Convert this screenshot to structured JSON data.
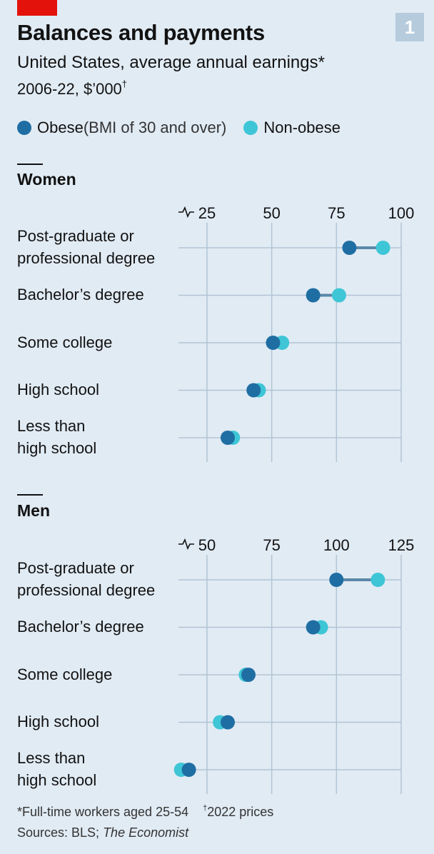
{
  "header": {
    "badge": "1",
    "title": "Balances and payments",
    "subtitle": "United States, average annual earnings*",
    "subtitle2": "2006-22, $’000",
    "subtitle2_mark": "†"
  },
  "legend": {
    "obese_label": "Obese",
    "obese_note": " (BMI of 30 and over)",
    "nonobese_label": "Non-obese"
  },
  "colors": {
    "obese": "#1f6ea3",
    "nonobese": "#3ec6d6",
    "connector": "#5a88a8",
    "grid": "#b2c4d4"
  },
  "footnote": {
    "text1": "*Full-time workers aged 25-54",
    "mark": "†",
    "text2": "2022 prices"
  },
  "source": {
    "prefix": "Sources: BLS; ",
    "italic": "The Economist"
  },
  "chart_data": [
    {
      "type": "dot",
      "title": "Women",
      "xlim": [
        20,
        100
      ],
      "ticks": [
        "25",
        "50",
        "75",
        "100"
      ],
      "tick_values": [
        25,
        50,
        75,
        100
      ],
      "categories": [
        [
          "Post-graduate or",
          "professional degree"
        ],
        [
          "Bachelor’s degree"
        ],
        [
          "Some college"
        ],
        [
          "High school"
        ],
        [
          "Less than",
          "high school"
        ]
      ],
      "series": [
        {
          "name": "Obese",
          "values": [
            80,
            66,
            50.5,
            43,
            33
          ]
        },
        {
          "name": "Non-obese",
          "values": [
            93,
            76,
            54,
            45,
            35
          ]
        }
      ]
    },
    {
      "type": "dot",
      "title": "Men",
      "xlim": [
        40,
        125
      ],
      "ticks": [
        "50",
        "75",
        "100",
        "125"
      ],
      "tick_values": [
        50,
        75,
        100,
        125
      ],
      "categories": [
        [
          "Post-graduate or",
          "professional degree"
        ],
        [
          "Bachelor’s degree"
        ],
        [
          "Some college"
        ],
        [
          "High school"
        ],
        [
          "Less than",
          "high school"
        ]
      ],
      "series": [
        {
          "name": "Obese",
          "values": [
            100,
            91,
            66,
            58,
            43
          ]
        },
        {
          "name": "Non-obese",
          "values": [
            116,
            94,
            65,
            55,
            40
          ]
        }
      ]
    }
  ]
}
